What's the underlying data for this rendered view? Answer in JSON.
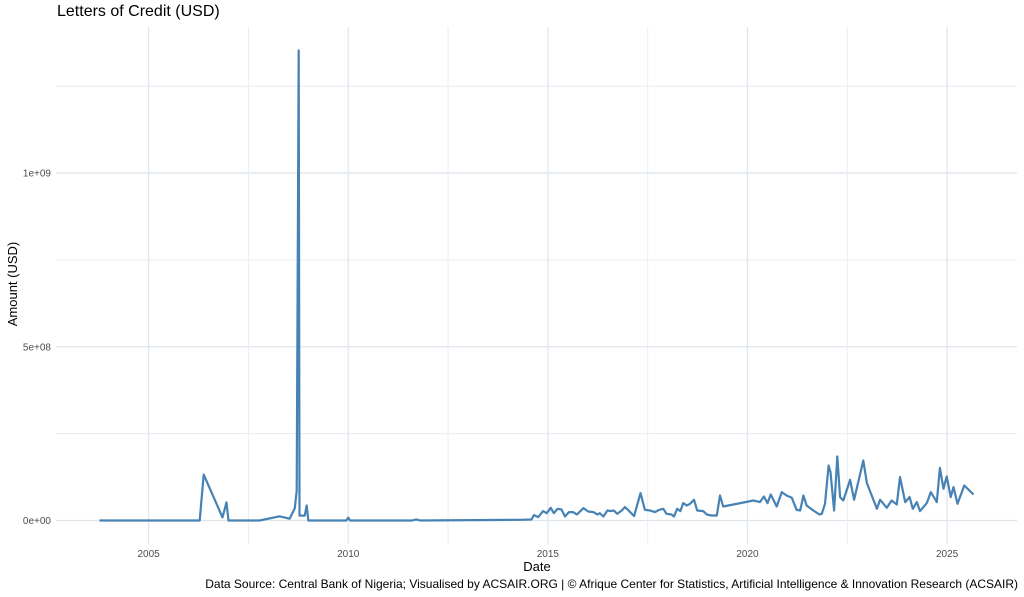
{
  "chart_data": {
    "type": "line",
    "title": "Letters of Credit (USD)",
    "xlabel": "Date",
    "ylabel": "Amount (USD)",
    "caption": "Data Source: Central Bank of Nigeria; Visualised by ACSAIR.ORG | © Afrique Center for Statistics, Artificial Intelligence & Innovation Research (ACSAIR)",
    "x_unit": "year",
    "y_unit": "millions USD",
    "xlim": [
      2002.68,
      2026.75
    ],
    "ylim": [
      -67.7,
      1420.5
    ],
    "x_ticks": [
      2005,
      2010,
      2015,
      2020,
      2025
    ],
    "x_tick_labels": [
      "2005",
      "2010",
      "2015",
      "2020",
      "2025"
    ],
    "y_ticks": [
      0,
      500,
      1000
    ],
    "y_tick_labels": [
      "0e+00",
      "5e+08",
      "1e+09"
    ],
    "y_minor_ticks": [
      250,
      750,
      1250
    ],
    "grid": true,
    "legend": "none",
    "color": "#4682B4",
    "series": [
      {
        "x": [
          2003.77,
          2006.28,
          2006.38,
          2006.85,
          2006.95,
          2007.0,
          2007.78,
          2008.28,
          2008.53,
          2008.66,
          2008.71,
          2008.76,
          2008.78,
          2008.91,
          2008.96,
          2009.0,
          2009.95,
          2010.0,
          2010.05,
          2011.6,
          2011.7,
          2011.8,
          2014.3,
          2014.59,
          2014.65,
          2014.76,
          2014.88,
          2014.97,
          2015.07,
          2015.15,
          2015.24,
          2015.34,
          2015.43,
          2015.53,
          2015.63,
          2015.73,
          2015.89,
          2016.01,
          2016.14,
          2016.24,
          2016.3,
          2016.39,
          2016.49,
          2016.57,
          2016.65,
          2016.74,
          2016.85,
          2016.93,
          2017.04,
          2017.16,
          2017.32,
          2017.43,
          2017.56,
          2017.68,
          2017.79,
          2017.89,
          2017.97,
          2018.1,
          2018.16,
          2018.24,
          2018.32,
          2018.39,
          2018.48,
          2018.56,
          2018.66,
          2018.74,
          2018.89,
          2018.98,
          2019.1,
          2019.23,
          2019.31,
          2019.39,
          2020.15,
          2020.31,
          2020.41,
          2020.5,
          2020.58,
          2020.73,
          2020.86,
          2020.98,
          2021.11,
          2021.23,
          2021.32,
          2021.4,
          2021.48,
          2021.65,
          2021.8,
          2021.86,
          2021.94,
          2022.03,
          2022.08,
          2022.17,
          2022.25,
          2022.32,
          2022.4,
          2022.57,
          2022.67,
          2022.9,
          2022.99,
          2023.24,
          2023.32,
          2023.49,
          2023.61,
          2023.74,
          2023.82,
          2023.95,
          2024.06,
          2024.14,
          2024.24,
          2024.32,
          2024.49,
          2024.59,
          2024.74,
          2024.82,
          2024.91,
          2024.99,
          2025.09,
          2025.16,
          2025.26,
          2025.43,
          2025.66
        ],
        "y": [
          0,
          0,
          132,
          9,
          52,
          0,
          0,
          12,
          5,
          35,
          86,
          1353,
          14,
          14,
          43,
          0,
          0,
          8,
          0,
          0,
          3,
          0,
          1.9,
          2.9,
          15.4,
          9.6,
          26.9,
          21.1,
          36.5,
          21.1,
          33.6,
          31.7,
          11.5,
          24,
          24,
          17.3,
          35.5,
          25.9,
          24,
          17.3,
          21.1,
          11.5,
          28.8,
          26.9,
          28.8,
          19.2,
          28.8,
          38.4,
          26.9,
          12.5,
          78.7,
          30.7,
          28.8,
          24,
          30.7,
          33.6,
          19.2,
          17.3,
          11.5,
          33.6,
          26.9,
          49.9,
          43.2,
          48,
          59.5,
          28.8,
          26.9,
          17.3,
          14.4,
          14.4,
          72,
          40.3,
          57.6,
          52.8,
          69,
          49.9,
          74.9,
          40.3,
          81.6,
          72,
          65.3,
          30.7,
          28.8,
          72,
          43.2,
          28.8,
          17.3,
          19.2,
          48,
          158.4,
          139.2,
          28.8,
          184.3,
          67.2,
          57.6,
          117.1,
          59.5,
          172.8,
          107.5,
          33.6,
          59.5,
          36.5,
          57.6,
          46.1,
          124.8,
          52.8,
          67.2,
          33.6,
          52.8,
          26.9,
          49.9,
          81.6,
          52.8,
          151.7,
          91.2,
          126.7,
          67.2,
          96,
          48,
          100.8,
          74.9
        ]
      }
    ]
  }
}
